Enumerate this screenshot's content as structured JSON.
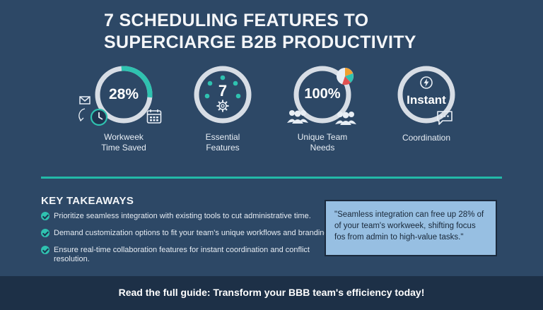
{
  "title": {
    "line1": "7 SCHEDULING FEATURES TO",
    "line2": "SUPERCIARGE B2B PRODUCTIVITY"
  },
  "stats": [
    {
      "value": "28%",
      "label_line1": "Workweek",
      "label_line2": "Time Saved",
      "progress": 0.28,
      "icons": [
        "mail-icon",
        "clock-icon",
        "calendar-icon"
      ]
    },
    {
      "value": "7",
      "label_line1": "Essential",
      "label_line2": "Features",
      "icons": [
        "dots-icon",
        "gear-icon"
      ]
    },
    {
      "value": "100%",
      "label_line1": "Unique Team",
      "label_line2": "Needs",
      "icons": [
        "pie-icon",
        "team-icon"
      ]
    },
    {
      "value": "Instant",
      "label_line1": "Coordination",
      "label_line2": "",
      "icons": [
        "lightning-icon",
        "chat-icon"
      ]
    }
  ],
  "takeaways": {
    "title": "KEY TAKEAWAYS",
    "items": [
      "Prioritize seamless integration with existing tools to cut administrative time.",
      "Demand customization options to fit your team's unique workflows and branding.",
      "Ensure real-time collaboration features for instant coordination and conflict",
      "resolution."
    ]
  },
  "quote": {
    "line1": "\"Seamless integration can free up 28% of",
    "line2": "of your team's workweek, shifting focus",
    "line3": "fos from admin to high-value tasks.\""
  },
  "footer": "Read the full guide: Transform your BBB team's efficiency today!",
  "colors": {
    "background": "#2d4866",
    "accent": "#23b9a8",
    "ring": "#d7dde5",
    "quote_bg": "#97bfe2",
    "footer_bg": "#1d3047"
  }
}
